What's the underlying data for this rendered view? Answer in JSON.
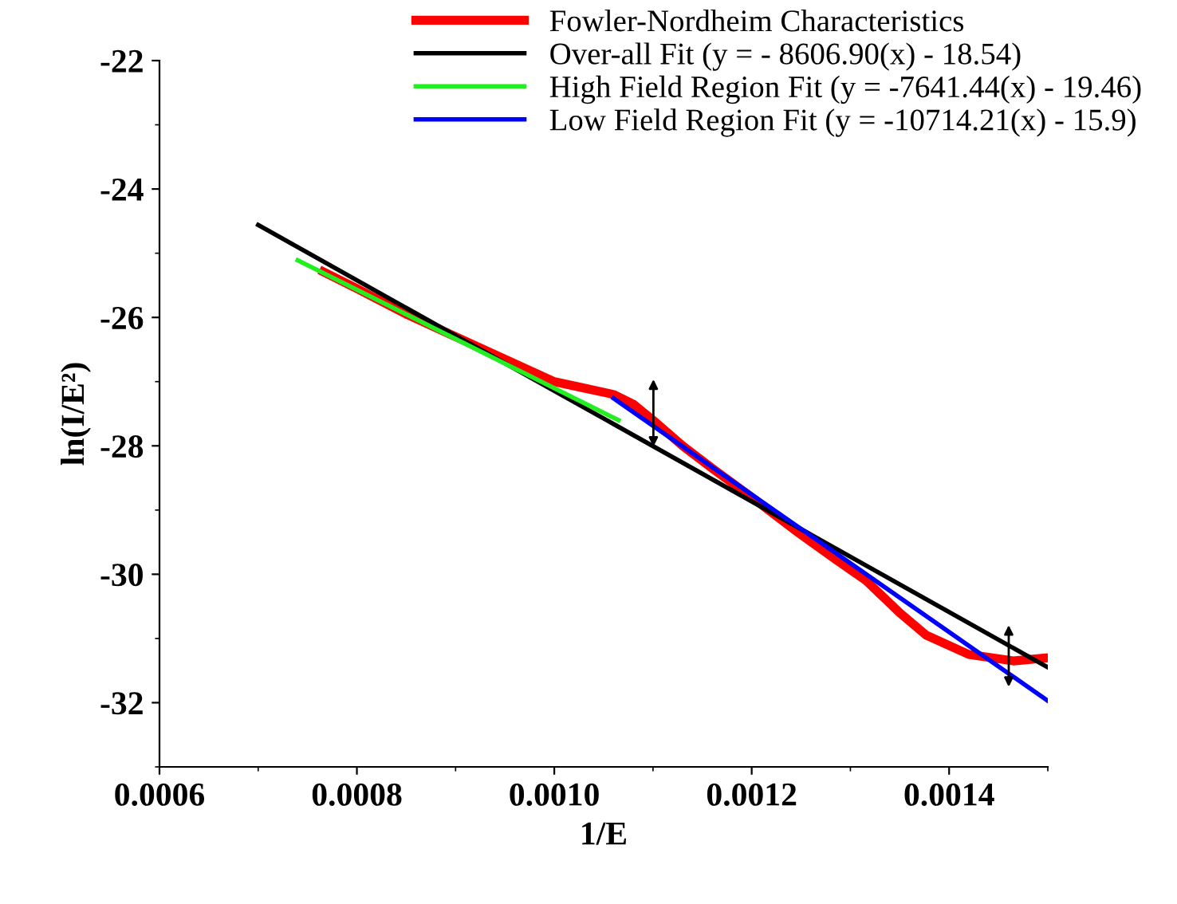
{
  "chart_data": {
    "type": "line",
    "xlabel": "1/E",
    "ylabel": "ln(I/E²)",
    "xlim": [
      0.0006,
      0.0015
    ],
    "ylim": [
      -33,
      -22
    ],
    "xticks": [
      0.0006,
      0.0008,
      {
        "value": 0.001,
        "label": "0.0010"
      },
      0.0012,
      0.0014
    ],
    "yticks": [
      -32,
      -30,
      -28,
      -26,
      -24,
      -22
    ],
    "grid": false,
    "legend": "top right",
    "marker": "none",
    "line_style": "solid",
    "series": [
      {
        "name": "Fowler-Nordheim Characteristics",
        "color": "#ff0000",
        "x": [
          0.000766,
          0.0008,
          0.00085,
          0.0009,
          0.00095,
          0.001,
          0.00103,
          0.00106,
          0.00108,
          0.0011,
          0.00113,
          0.00116,
          0.0012,
          0.001247,
          0.001285,
          0.001316,
          0.00135,
          0.001377,
          0.00142,
          0.001465,
          0.0015
        ],
        "values": [
          -25.29,
          -25.55,
          -25.95,
          -26.3,
          -26.65,
          -27.0,
          -27.1,
          -27.2,
          -27.35,
          -27.6,
          -28.0,
          -28.35,
          -28.8,
          -29.35,
          -29.77,
          -30.1,
          -30.6,
          -30.95,
          -31.25,
          -31.35,
          -31.3
        ]
      },
      {
        "name": "Over-all Fit (y = - 8606.90(x) - 18.54)",
        "color": "#000000",
        "x": [
          0.0007,
          0.0015
        ],
        "values": [
          -24.56,
          -31.45
        ]
      },
      {
        "name": "High Field Region Fit (y = -7641.44(x) - 19.46)",
        "color": "#22ee22",
        "x": [
          0.00074,
          0.001065
        ],
        "values": [
          -25.11,
          -27.6
        ]
      },
      {
        "name": "Low Field Region Fit (y = -10714.21(x) - 15.9)",
        "color": "#0000ff",
        "x": [
          0.00106,
          0.0015
        ],
        "values": [
          -27.26,
          -31.97
        ]
      }
    ]
  }
}
